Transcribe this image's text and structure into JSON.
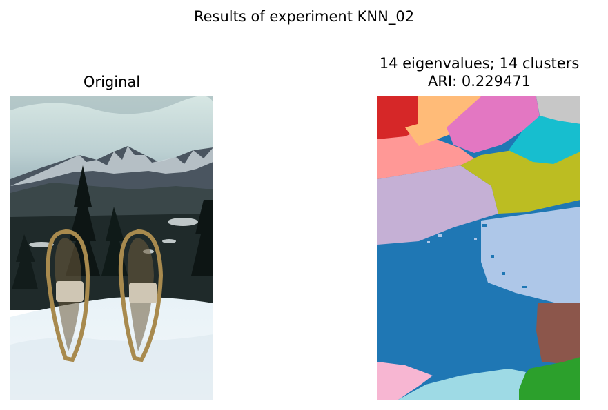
{
  "figure": {
    "suptitle": "Results of experiment KNN_02"
  },
  "left_panel": {
    "title": "Original",
    "image_description_icon": "snowshoes-in-snow-photo"
  },
  "right_panel": {
    "title_line1": "14 eigenvalues; 14 clusters",
    "title_line2": "ARI: 0.229471",
    "cluster_colors": [
      "#d62728",
      "#ffbb78",
      "#e377c2",
      "#c7c7c7",
      "#17becf",
      "#ff9896",
      "#bcbd22",
      "#c5b0d5",
      "#aec7e8",
      "#1f77b4",
      "#8c564b",
      "#f7b6d2",
      "#9edae5",
      "#2ca02c"
    ]
  }
}
